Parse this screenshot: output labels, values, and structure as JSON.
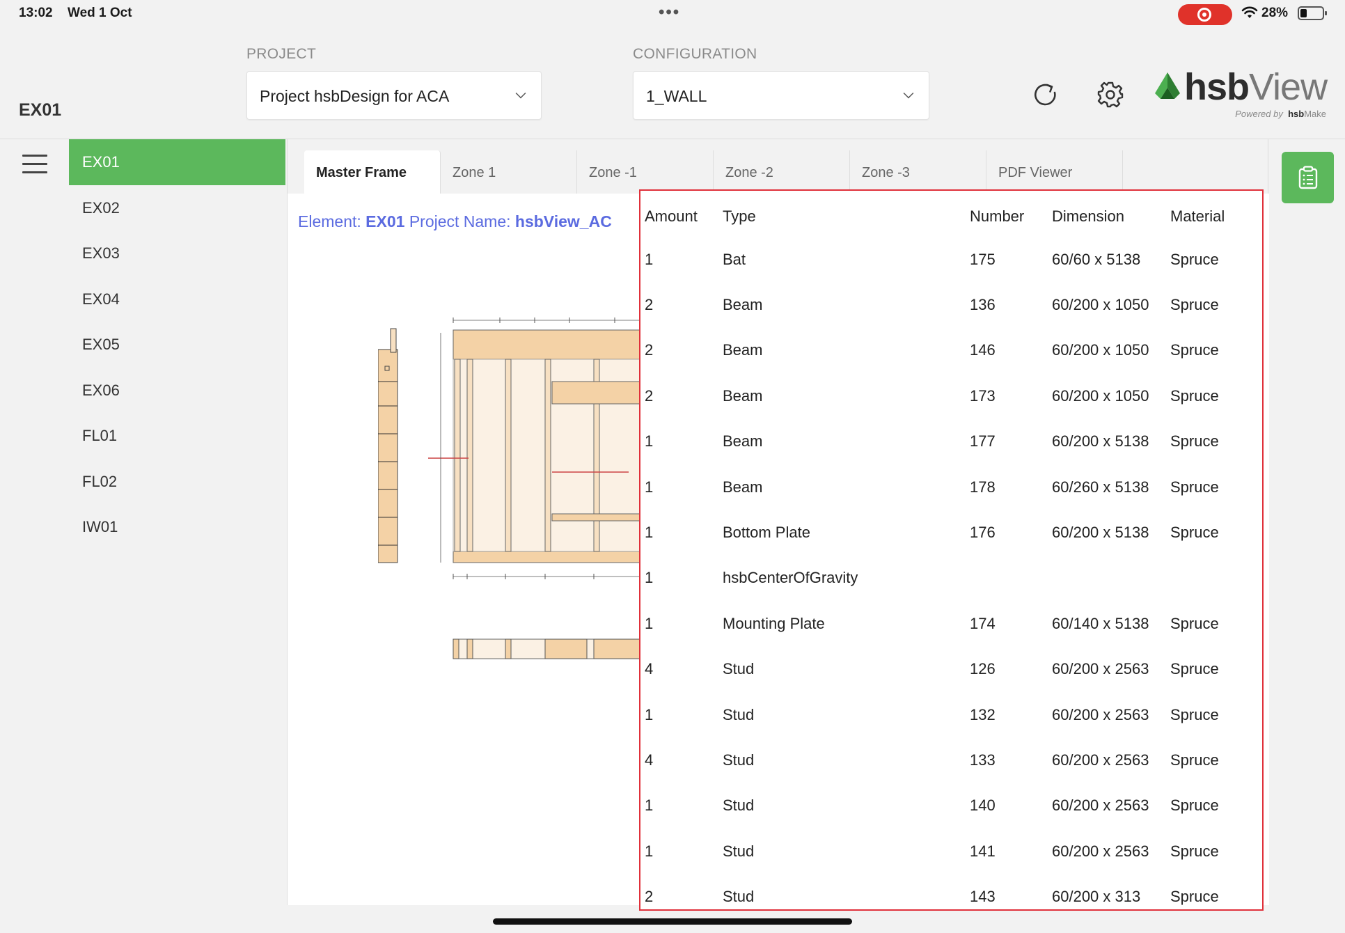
{
  "status_bar": {
    "time": "13:02",
    "date": "Wed 1 Oct",
    "battery": "28%"
  },
  "header": {
    "element_name": "EX01",
    "project_label": "PROJECT",
    "project_value": "Project hsbDesign for ACA",
    "configuration_label": "CONFIGURATION",
    "configuration_value": "1_WALL",
    "logo_main": "hsb",
    "logo_view": "View",
    "powered_by": "Powered by",
    "powered_brand": "hsb",
    "powered_brand_suffix": "Make"
  },
  "sidebar": {
    "items": [
      {
        "label": "EX01",
        "active": true
      },
      {
        "label": "EX02"
      },
      {
        "label": "EX03"
      },
      {
        "label": "EX04"
      },
      {
        "label": "EX05"
      },
      {
        "label": "EX06"
      },
      {
        "label": "FL01"
      },
      {
        "label": "FL02"
      },
      {
        "label": "IW01"
      }
    ]
  },
  "tabs": [
    {
      "label": "Master Frame",
      "active": true
    },
    {
      "label": "Zone 1"
    },
    {
      "label": "Zone -1"
    },
    {
      "label": "Zone -2"
    },
    {
      "label": "Zone -3"
    },
    {
      "label": "PDF Viewer"
    }
  ],
  "drawing_header": {
    "element_prefix": "Element:",
    "element_value": "EX01",
    "project_prefix": "Project Name:",
    "project_value": "hsbView_AC"
  },
  "bom": {
    "headers": {
      "amount": "Amount",
      "type": "Type",
      "number": "Number",
      "dimension": "Dimension",
      "material": "Material"
    },
    "rows": [
      {
        "amount": "1",
        "type": "Bat",
        "number": "175",
        "dimension": "60/60 x 5138",
        "material": "Spruce"
      },
      {
        "amount": "2",
        "type": "Beam",
        "number": "136",
        "dimension": "60/200 x 1050",
        "material": "Spruce"
      },
      {
        "amount": "2",
        "type": "Beam",
        "number": "146",
        "dimension": "60/200 x 1050",
        "material": "Spruce"
      },
      {
        "amount": "2",
        "type": "Beam",
        "number": "173",
        "dimension": "60/200 x 1050",
        "material": "Spruce"
      },
      {
        "amount": "1",
        "type": "Beam",
        "number": "177",
        "dimension": "60/200 x 5138",
        "material": "Spruce"
      },
      {
        "amount": "1",
        "type": "Beam",
        "number": "178",
        "dimension": "60/260 x 5138",
        "material": "Spruce"
      },
      {
        "amount": "1",
        "type": "Bottom Plate",
        "number": "176",
        "dimension": "60/200 x 5138",
        "material": "Spruce"
      },
      {
        "amount": "1",
        "type": "hsbCenterOfGravity",
        "number": "",
        "dimension": "",
        "material": ""
      },
      {
        "amount": "1",
        "type": "Mounting Plate",
        "number": "174",
        "dimension": "60/140 x 5138",
        "material": "Spruce"
      },
      {
        "amount": "4",
        "type": "Stud",
        "number": "126",
        "dimension": "60/200 x 2563",
        "material": "Spruce"
      },
      {
        "amount": "1",
        "type": "Stud",
        "number": "132",
        "dimension": "60/200 x 2563",
        "material": "Spruce"
      },
      {
        "amount": "4",
        "type": "Stud",
        "number": "133",
        "dimension": "60/200 x 2563",
        "material": "Spruce"
      },
      {
        "amount": "1",
        "type": "Stud",
        "number": "140",
        "dimension": "60/200 x 2563",
        "material": "Spruce"
      },
      {
        "amount": "1",
        "type": "Stud",
        "number": "141",
        "dimension": "60/200 x 2563",
        "material": "Spruce"
      },
      {
        "amount": "2",
        "type": "Stud",
        "number": "143",
        "dimension": "60/200 x 313",
        "material": "Spruce"
      }
    ]
  },
  "colors": {
    "accent_green": "#5cb85c",
    "title_blue": "#5b6be0",
    "highlight_red": "#e0303a",
    "record_red": "#e0322a"
  },
  "icons": [
    "wifi-icon",
    "battery-icon",
    "chevron-down-icon",
    "refresh-icon",
    "gear-icon",
    "hamburger-icon",
    "clipboard-icon",
    "hsb-logo"
  ]
}
